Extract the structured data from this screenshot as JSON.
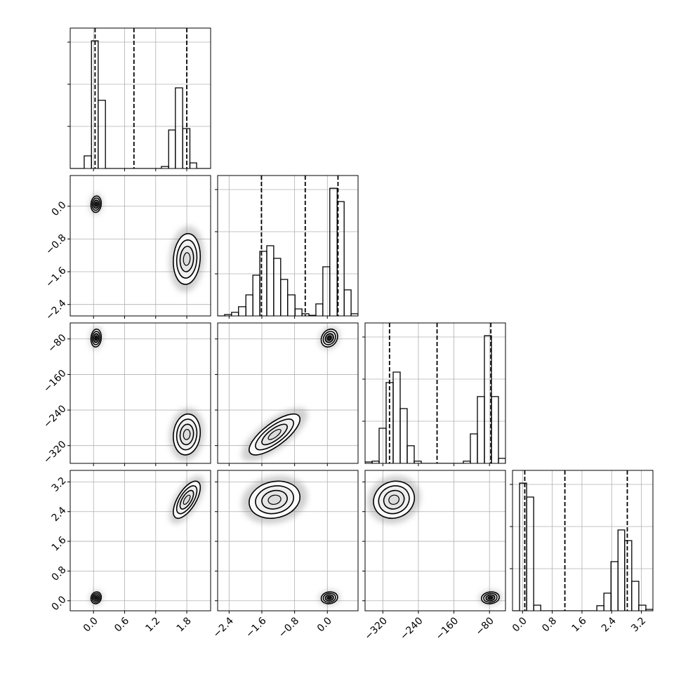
{
  "chart_data": {
    "type": "corner",
    "grid": true,
    "grid_color": "#b0b0b0",
    "line_color": "#000000",
    "hist_ylim": [
      0,
      1100
    ],
    "hist_yticks": [
      330,
      660,
      990
    ],
    "variables": [
      {
        "lim": [
          -0.45,
          2.26
        ],
        "ticks": [
          {
            "value": 0,
            "label": "0.0"
          },
          {
            "value": 0.6,
            "label": "0.6"
          },
          {
            "value": 1.2,
            "label": "1.2"
          },
          {
            "value": 1.8,
            "label": "1.8"
          }
        ],
        "quantiles": [
          0.03,
          0.78,
          1.8
        ],
        "hist": {
          "bins": [
            -0.45,
            -0.31,
            -0.18,
            -0.04,
            0.09,
            0.23,
            0.36,
            0.5,
            0.63,
            0.77,
            0.91,
            1.04,
            1.18,
            1.31,
            1.45,
            1.58,
            1.72,
            1.86,
            1.99,
            2.13,
            2.26
          ],
          "counts": [
            0,
            0,
            99,
            1000,
            534,
            0,
            0,
            0,
            0,
            0,
            0,
            0,
            0,
            16,
            302,
            632,
            313,
            44,
            0,
            0
          ]
        }
      },
      {
        "lim": [
          -2.68,
          0.75
        ],
        "ticks": [
          {
            "value": -2.4,
            "label": "−2.4"
          },
          {
            "value": -1.6,
            "label": "−1.6"
          },
          {
            "value": -0.8,
            "label": "−0.8"
          },
          {
            "value": 0,
            "label": "0.0"
          }
        ],
        "quantiles": [
          -1.61,
          -0.54,
          0.26
        ],
        "hist": {
          "bins": [
            -2.68,
            -2.51,
            -2.34,
            -2.17,
            -1.99,
            -1.82,
            -1.65,
            -1.48,
            -1.31,
            -1.14,
            -0.97,
            -0.79,
            -0.62,
            -0.45,
            -0.28,
            -0.11,
            0.06,
            0.24,
            0.41,
            0.58,
            0.75
          ],
          "counts": [
            0,
            11,
            28,
            72,
            165,
            319,
            506,
            550,
            451,
            286,
            165,
            55,
            17,
            5,
            94,
            385,
            1000,
            896,
            204,
            17
          ]
        }
      },
      {
        "lim": [
          -360,
          -44
        ],
        "ticks": [
          {
            "value": -320,
            "label": "−320"
          },
          {
            "value": -240,
            "label": "−240"
          },
          {
            "value": -160,
            "label": "−160"
          },
          {
            "value": -80,
            "label": "−80"
          }
        ],
        "quantiles": [
          -305,
          -198,
          -77
        ],
        "hist": {
          "bins": [
            -360,
            -344.2,
            -328.4,
            -312.6,
            -296.8,
            -281,
            -265.2,
            -249.4,
            -233.6,
            -217.8,
            -202,
            -186.2,
            -170.4,
            -154.6,
            -138.8,
            -123,
            -107.2,
            -91.4,
            -75.6,
            -59.8,
            -44
          ],
          "counts": [
            11,
            17,
            275,
            633,
            715,
            429,
            138,
            17,
            0,
            0,
            0,
            0,
            0,
            0,
            17,
            231,
            523,
            1000,
            523,
            39
          ]
        }
      },
      {
        "lim": [
          -0.27,
          3.51
        ],
        "ticks": [
          {
            "value": 0,
            "label": "0.0"
          },
          {
            "value": 0.8,
            "label": "0.8"
          },
          {
            "value": 1.6,
            "label": "1.6"
          },
          {
            "value": 2.4,
            "label": "2.4"
          },
          {
            "value": 3.2,
            "label": "3.2"
          }
        ],
        "quantiles": [
          0.06,
          1.14,
          2.82
        ],
        "hist": {
          "bins": [
            -0.27,
            -0.08,
            0.11,
            0.3,
            0.49,
            0.68,
            0.86,
            1.05,
            1.24,
            1.43,
            1.62,
            1.81,
            2,
            2.19,
            2.38,
            2.57,
            2.75,
            2.94,
            3.13,
            3.32,
            3.51
          ],
          "counts": [
            0,
            1000,
            891,
            44,
            0,
            0,
            0,
            0,
            0,
            0,
            0,
            0,
            40,
            138,
            385,
            633,
            550,
            231,
            44,
            11
          ]
        }
      }
    ],
    "modes": [
      {
        "mean": [
          0.05,
          0.05,
          -78,
          0.08
        ],
        "sd": [
          0.05,
          0.1,
          10,
          0.08
        ],
        "core_color": "#1a1a1a",
        "corr": [
          [
            1,
            0.1,
            0.1,
            0.1
          ],
          [
            0.1,
            1,
            0.2,
            0.1
          ],
          [
            0.1,
            0.2,
            1,
            0.1
          ],
          [
            0.1,
            0.1,
            0.1,
            1
          ]
        ]
      },
      {
        "mean": [
          1.8,
          -1.29,
          -295,
          2.72
        ],
        "sd": [
          0.13,
          0.31,
          23,
          0.25
        ],
        "core_color": "#dcdcdc",
        "corr": [
          [
            1,
            0.1,
            0.1,
            0.65
          ],
          [
            0.1,
            1,
            0.75,
            0.15
          ],
          [
            0.1,
            0.75,
            1,
            0.1
          ],
          [
            0.65,
            0.15,
            0.1,
            1
          ]
        ]
      }
    ]
  }
}
